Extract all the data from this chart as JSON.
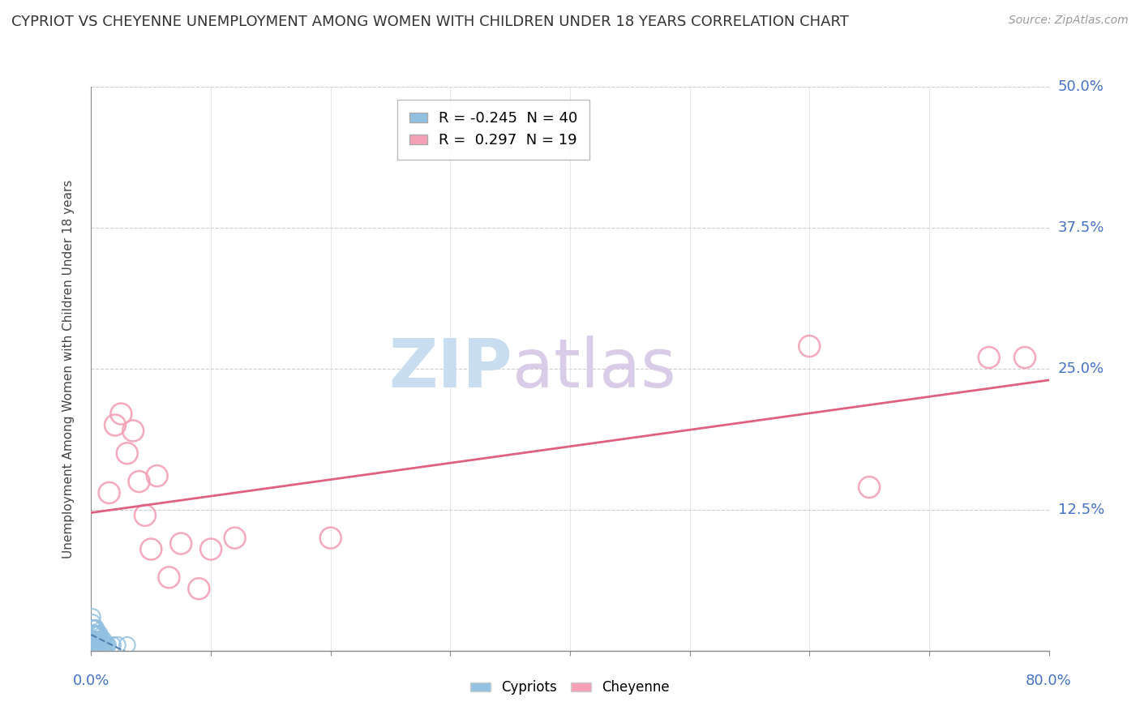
{
  "title": "CYPRIOT VS CHEYENNE UNEMPLOYMENT AMONG WOMEN WITH CHILDREN UNDER 18 YEARS CORRELATION CHART",
  "source": "Source: ZipAtlas.com",
  "ylabel": "Unemployment Among Women with Children Under 18 years",
  "xlim": [
    0.0,
    0.8
  ],
  "ylim": [
    0.0,
    0.5
  ],
  "xticks": [
    0.0,
    0.1,
    0.2,
    0.3,
    0.4,
    0.5,
    0.6,
    0.7,
    0.8
  ],
  "yticks": [
    0.0,
    0.125,
    0.25,
    0.375,
    0.5
  ],
  "ytick_labels": [
    "0.0%",
    "12.5%",
    "25.0%",
    "37.5%",
    "50.0%"
  ],
  "cypriot_color": "#92c0e0",
  "cheyenne_color": "#f4a0b5",
  "cypriot_line_color": "#5080b0",
  "cheyenne_line_color": "#e06080",
  "cypriot_R": -0.245,
  "cypriot_N": 40,
  "cheyenne_R": 0.297,
  "cheyenne_N": 19,
  "background_color": "#ffffff",
  "cypriot_x": [
    0.001,
    0.001,
    0.001,
    0.001,
    0.001,
    0.001,
    0.002,
    0.002,
    0.002,
    0.002,
    0.003,
    0.003,
    0.003,
    0.003,
    0.004,
    0.004,
    0.004,
    0.004,
    0.005,
    0.005,
    0.005,
    0.006,
    0.006,
    0.006,
    0.007,
    0.007,
    0.007,
    0.008,
    0.008,
    0.009,
    0.009,
    0.01,
    0.01,
    0.011,
    0.012,
    0.013,
    0.014,
    0.018,
    0.022,
    0.03
  ],
  "cypriot_y": [
    0.005,
    0.01,
    0.015,
    0.02,
    0.025,
    0.03,
    0.005,
    0.01,
    0.015,
    0.02,
    0.005,
    0.01,
    0.015,
    0.02,
    0.005,
    0.01,
    0.015,
    0.02,
    0.005,
    0.01,
    0.015,
    0.005,
    0.01,
    0.015,
    0.005,
    0.01,
    0.015,
    0.005,
    0.01,
    0.005,
    0.01,
    0.005,
    0.01,
    0.005,
    0.005,
    0.005,
    0.005,
    0.005,
    0.005,
    0.005
  ],
  "cheyenne_x": [
    0.015,
    0.02,
    0.025,
    0.03,
    0.035,
    0.04,
    0.045,
    0.05,
    0.055,
    0.065,
    0.075,
    0.09,
    0.1,
    0.12,
    0.2,
    0.6,
    0.65,
    0.75,
    0.78
  ],
  "cheyenne_y": [
    0.14,
    0.2,
    0.21,
    0.175,
    0.195,
    0.15,
    0.12,
    0.09,
    0.155,
    0.065,
    0.095,
    0.055,
    0.09,
    0.1,
    0.1,
    0.27,
    0.145,
    0.26,
    0.26
  ]
}
